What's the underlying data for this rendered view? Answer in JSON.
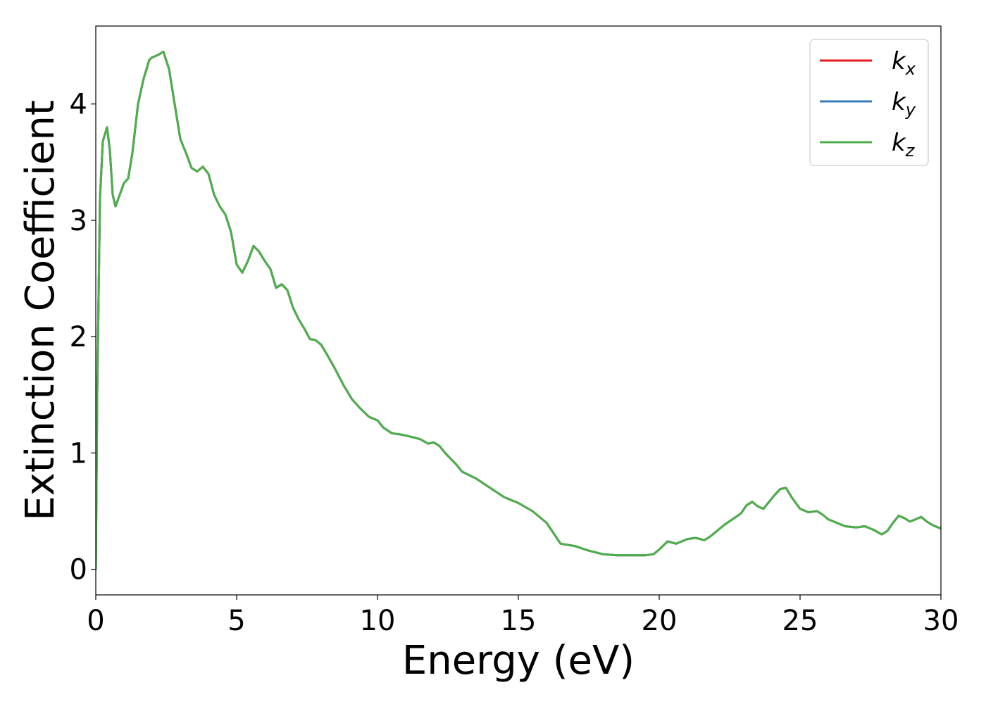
{
  "chart_data": {
    "type": "line",
    "title": "",
    "xlabel": "Energy (eV)",
    "ylabel": "Extinction Coefficient",
    "xlim": [
      0,
      30
    ],
    "ylim": [
      -0.22,
      4.67
    ],
    "xticks": [
      0,
      5,
      10,
      15,
      20,
      25,
      30
    ],
    "xtick_labels": [
      "0",
      "5",
      "10",
      "15",
      "20",
      "25",
      "30"
    ],
    "yticks": [
      0,
      1,
      2,
      3,
      4
    ],
    "ytick_labels": [
      "0",
      "1",
      "2",
      "3",
      "4"
    ],
    "grid": false,
    "legend_position": "top-right",
    "x": [
      0,
      0.05,
      0.15,
      0.25,
      0.4,
      0.5,
      0.6,
      0.7,
      0.85,
      1.0,
      1.15,
      1.3,
      1.5,
      1.7,
      1.9,
      2.0,
      2.2,
      2.4,
      2.6,
      2.8,
      3.0,
      3.2,
      3.4,
      3.6,
      3.8,
      4.0,
      4.2,
      4.4,
      4.6,
      4.8,
      5.0,
      5.2,
      5.4,
      5.6,
      5.8,
      6.0,
      6.2,
      6.4,
      6.6,
      6.8,
      7.0,
      7.2,
      7.4,
      7.6,
      7.8,
      8.0,
      8.2,
      8.5,
      8.8,
      9.1,
      9.4,
      9.7,
      10.0,
      10.2,
      10.5,
      10.8,
      11.0,
      11.5,
      11.8,
      12.0,
      12.2,
      12.4,
      12.6,
      12.8,
      13.0,
      13.5,
      14.0,
      14.5,
      15.0,
      15.5,
      16.0,
      16.5,
      17.0,
      17.5,
      18.0,
      18.5,
      19.0,
      19.5,
      19.8,
      20.0,
      20.3,
      20.6,
      20.8,
      21.0,
      21.3,
      21.6,
      21.8,
      22.0,
      22.3,
      22.6,
      22.9,
      23.1,
      23.3,
      23.5,
      23.7,
      23.9,
      24.1,
      24.3,
      24.5,
      24.7,
      25.0,
      25.3,
      25.6,
      25.8,
      26.0,
      26.3,
      26.6,
      27.0,
      27.3,
      27.6,
      27.9,
      28.1,
      28.3,
      28.5,
      28.7,
      28.9,
      29.1,
      29.3,
      29.5,
      29.7,
      30.0
    ],
    "series": [
      {
        "name": "k_x",
        "color": "#e41a1c",
        "values": [
          0,
          1.5,
          3.2,
          3.68,
          3.8,
          3.6,
          3.22,
          3.12,
          3.22,
          3.32,
          3.36,
          3.58,
          4.0,
          4.22,
          4.38,
          4.4,
          4.42,
          4.45,
          4.3,
          4.0,
          3.7,
          3.58,
          3.45,
          3.42,
          3.46,
          3.4,
          3.22,
          3.12,
          3.05,
          2.9,
          2.62,
          2.55,
          2.65,
          2.78,
          2.73,
          2.65,
          2.58,
          2.42,
          2.45,
          2.4,
          2.25,
          2.15,
          2.07,
          1.98,
          1.97,
          1.93,
          1.85,
          1.72,
          1.58,
          1.46,
          1.38,
          1.31,
          1.28,
          1.22,
          1.17,
          1.16,
          1.15,
          1.12,
          1.08,
          1.09,
          1.06,
          1.0,
          0.95,
          0.9,
          0.84,
          0.78,
          0.7,
          0.62,
          0.57,
          0.5,
          0.4,
          0.22,
          0.2,
          0.16,
          0.13,
          0.12,
          0.12,
          0.12,
          0.13,
          0.17,
          0.24,
          0.22,
          0.24,
          0.26,
          0.27,
          0.25,
          0.28,
          0.32,
          0.38,
          0.43,
          0.48,
          0.55,
          0.58,
          0.54,
          0.52,
          0.58,
          0.64,
          0.69,
          0.7,
          0.62,
          0.52,
          0.49,
          0.5,
          0.47,
          0.43,
          0.4,
          0.37,
          0.36,
          0.37,
          0.34,
          0.3,
          0.33,
          0.4,
          0.46,
          0.44,
          0.41,
          0.43,
          0.45,
          0.41,
          0.38,
          0.35
        ]
      },
      {
        "name": "k_y",
        "color": "#377eb8",
        "values": [
          0,
          1.5,
          3.2,
          3.68,
          3.8,
          3.6,
          3.22,
          3.12,
          3.22,
          3.32,
          3.36,
          3.58,
          4.0,
          4.22,
          4.38,
          4.4,
          4.42,
          4.45,
          4.3,
          4.0,
          3.7,
          3.58,
          3.45,
          3.42,
          3.46,
          3.4,
          3.22,
          3.12,
          3.05,
          2.9,
          2.62,
          2.55,
          2.65,
          2.78,
          2.73,
          2.65,
          2.58,
          2.42,
          2.45,
          2.4,
          2.25,
          2.15,
          2.07,
          1.98,
          1.97,
          1.93,
          1.85,
          1.72,
          1.58,
          1.46,
          1.38,
          1.31,
          1.28,
          1.22,
          1.17,
          1.16,
          1.15,
          1.12,
          1.08,
          1.09,
          1.06,
          1.0,
          0.95,
          0.9,
          0.84,
          0.78,
          0.7,
          0.62,
          0.57,
          0.5,
          0.4,
          0.22,
          0.2,
          0.16,
          0.13,
          0.12,
          0.12,
          0.12,
          0.13,
          0.17,
          0.24,
          0.22,
          0.24,
          0.26,
          0.27,
          0.25,
          0.28,
          0.32,
          0.38,
          0.43,
          0.48,
          0.55,
          0.58,
          0.54,
          0.52,
          0.58,
          0.64,
          0.69,
          0.7,
          0.62,
          0.52,
          0.49,
          0.5,
          0.47,
          0.43,
          0.4,
          0.37,
          0.36,
          0.37,
          0.34,
          0.3,
          0.33,
          0.4,
          0.46,
          0.44,
          0.41,
          0.43,
          0.45,
          0.41,
          0.38,
          0.35
        ]
      },
      {
        "name": "k_z",
        "color": "#4daf4a",
        "values": [
          0,
          1.5,
          3.2,
          3.68,
          3.8,
          3.6,
          3.22,
          3.12,
          3.22,
          3.32,
          3.36,
          3.58,
          4.0,
          4.22,
          4.38,
          4.4,
          4.42,
          4.45,
          4.3,
          4.0,
          3.7,
          3.58,
          3.45,
          3.42,
          3.46,
          3.4,
          3.22,
          3.12,
          3.05,
          2.9,
          2.62,
          2.55,
          2.65,
          2.78,
          2.73,
          2.65,
          2.58,
          2.42,
          2.45,
          2.4,
          2.25,
          2.15,
          2.07,
          1.98,
          1.97,
          1.93,
          1.85,
          1.72,
          1.58,
          1.46,
          1.38,
          1.31,
          1.28,
          1.22,
          1.17,
          1.16,
          1.15,
          1.12,
          1.08,
          1.09,
          1.06,
          1.0,
          0.95,
          0.9,
          0.84,
          0.78,
          0.7,
          0.62,
          0.57,
          0.5,
          0.4,
          0.22,
          0.2,
          0.16,
          0.13,
          0.12,
          0.12,
          0.12,
          0.13,
          0.17,
          0.24,
          0.22,
          0.24,
          0.26,
          0.27,
          0.25,
          0.28,
          0.32,
          0.38,
          0.43,
          0.48,
          0.55,
          0.58,
          0.54,
          0.52,
          0.58,
          0.64,
          0.69,
          0.7,
          0.62,
          0.52,
          0.49,
          0.5,
          0.47,
          0.43,
          0.4,
          0.37,
          0.36,
          0.37,
          0.34,
          0.3,
          0.33,
          0.4,
          0.46,
          0.44,
          0.41,
          0.43,
          0.45,
          0.41,
          0.38,
          0.35
        ]
      }
    ],
    "legend": [
      {
        "base": "k",
        "sub": "x",
        "color": "#e41a1c"
      },
      {
        "base": "k",
        "sub": "y",
        "color": "#377eb8"
      },
      {
        "base": "k",
        "sub": "z",
        "color": "#4daf4a"
      }
    ]
  }
}
